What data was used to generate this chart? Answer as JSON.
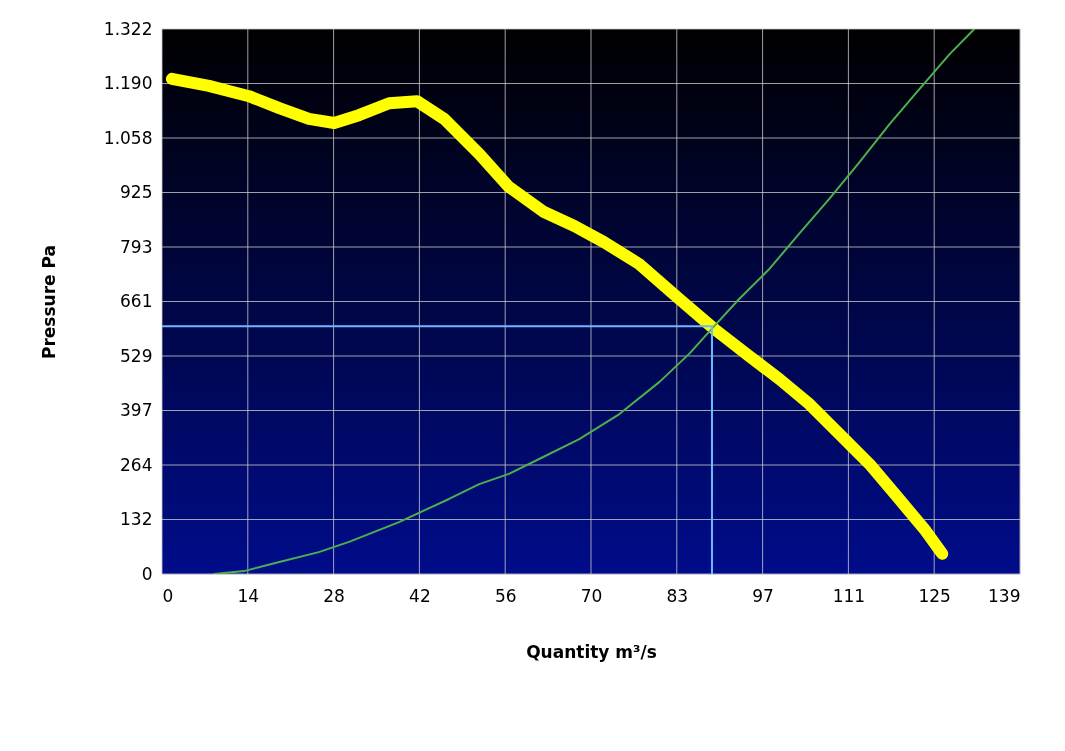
{
  "chart_data": {
    "type": "line",
    "xlabel": "Quantity m³/s",
    "ylabel": "Pressure Pa",
    "xlim": [
      0,
      139
    ],
    "ylim": [
      0,
      1322
    ],
    "xticks": [
      0,
      {
        "value": 13.9,
        "label": "14"
      },
      {
        "value": 27.8,
        "label": "28"
      },
      {
        "value": 41.7,
        "label": "42"
      },
      {
        "value": 55.6,
        "label": "56"
      },
      {
        "value": 69.5,
        "label": "70"
      },
      {
        "value": 83.4,
        "label": "83"
      },
      {
        "value": 97.3,
        "label": "97"
      },
      {
        "value": 111.2,
        "label": "111"
      },
      {
        "value": 125.1,
        "label": "125"
      },
      139
    ],
    "yticks": [
      0,
      {
        "value": 132.2,
        "label": "132"
      },
      {
        "value": 264.4,
        "label": "264"
      },
      {
        "value": 396.6,
        "label": "397"
      },
      {
        "value": 528.8,
        "label": "529"
      },
      661,
      {
        "value": 793.2,
        "label": "793"
      },
      {
        "value": 925.4,
        "label": "925"
      },
      {
        "value": 1057.6,
        "label": "1.058"
      },
      {
        "value": 1189.8,
        "label": "1.190"
      },
      {
        "value": 1322,
        "label": "1.322"
      }
    ],
    "grid": true,
    "marker": "none",
    "line_style": "solid",
    "series": [
      {
        "color": "#ffff00",
        "x": [
          1.6,
          7.6,
          14.1,
          19.0,
          23.8,
          27.9,
          31.9,
          36.8,
          41.3,
          45.7,
          51.4,
          56.2,
          61.9,
          66.8,
          71.6,
          77.3,
          83.8,
          89.5,
          95.1,
          100,
          104.9,
          109.7,
          114.6,
          119.4,
          123.5,
          126.4
        ],
        "values": [
          1201,
          1184,
          1159,
          1130,
          1104,
          1094,
          1113,
          1142,
          1147,
          1104,
          1019,
          939,
          878,
          844,
          805,
          752,
          667,
          594,
          529,
          473,
          412,
          340,
          267,
          182,
          109,
          49
        ]
      },
      {
        "color": "#4caf50",
        "x": [
          8.4,
          13.3,
          19,
          25.4,
          30.3,
          38.4,
          46.5,
          51.4,
          56.2,
          61.1,
          67.6,
          74.1,
          80.6,
          85.4,
          89.5,
          93.5,
          98.4,
          103.2,
          108.1,
          113,
          117.9,
          122.7,
          127.6,
          131.6
        ],
        "values": [
          0,
          7,
          29,
          53,
          78,
          126,
          182,
          218,
          243,
          279,
          327,
          388,
          466,
          534,
          602,
          667,
          740,
          825,
          910,
          999,
          1092,
          1176,
          1261,
          1322
        ]
      },
      {
        "color": "#6fb8ff",
        "x": [
          0,
          89.1,
          89.1
        ],
        "values": [
          601,
          601,
          0
        ]
      }
    ]
  }
}
